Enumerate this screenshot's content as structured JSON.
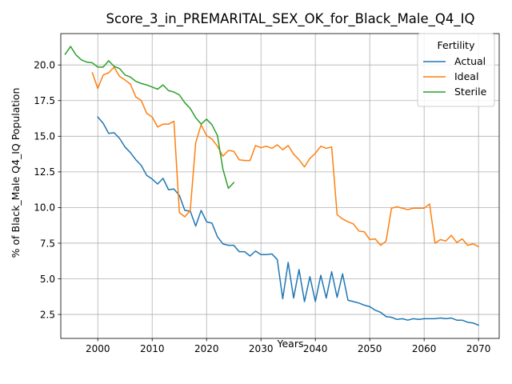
{
  "chart_data": {
    "type": "line",
    "title": "Score_3_in_PREMARITAL_SEX_OK_for_Black_Male_Q4_IQ",
    "xlabel": "Years",
    "ylabel": "% of Black_Male Q4_IQ Population",
    "xlim": [
      1993.2,
      2073.8
    ],
    "ylim": [
      0.82,
      22.2
    ],
    "x_ticks": [
      2000,
      2010,
      2020,
      2030,
      2040,
      2050,
      2060,
      2070
    ],
    "y_ticks": [
      2.5,
      5.0,
      7.5,
      10.0,
      12.5,
      15.0,
      17.5,
      20.0
    ],
    "x_tick_labels": [
      "2000",
      "2010",
      "2020",
      "2030",
      "2040",
      "2050",
      "2060",
      "2070"
    ],
    "y_tick_labels": [
      "2.5",
      "5.0",
      "7.5",
      "10.0",
      "12.5",
      "15.0",
      "17.5",
      "20.0"
    ],
    "grid": true,
    "legend": {
      "title": "Fertility",
      "position": "top-right"
    },
    "series": [
      {
        "name": "Actual",
        "color": "#1f77b4",
        "x_start": 2000,
        "values": [
          16.35,
          15.9,
          15.2,
          15.25,
          14.85,
          14.25,
          13.85,
          13.35,
          12.95,
          12.25,
          12.0,
          11.65,
          12.05,
          11.25,
          11.3,
          10.85,
          9.8,
          9.75,
          8.7,
          9.8,
          9.0,
          8.9,
          7.95,
          7.45,
          7.35,
          7.35,
          6.9,
          6.9,
          6.6,
          6.95,
          6.7,
          6.7,
          6.75,
          6.35,
          3.6,
          6.15,
          3.65,
          5.65,
          3.4,
          5.15,
          3.4,
          5.25,
          3.65,
          5.5,
          3.7,
          5.35,
          3.5,
          3.4,
          3.3,
          3.15,
          3.05,
          2.8,
          2.65,
          2.35,
          2.3,
          2.15,
          2.2,
          2.1,
          2.2,
          2.15,
          2.2,
          2.2,
          2.2,
          2.25,
          2.2,
          2.25,
          2.1,
          2.1,
          1.95,
          1.9,
          1.75
        ]
      },
      {
        "name": "Ideal",
        "color": "#ff7f0e",
        "x_start": 1999,
        "values": [
          19.45,
          18.35,
          19.3,
          19.45,
          19.85,
          19.2,
          18.95,
          18.65,
          17.75,
          17.5,
          16.6,
          16.35,
          15.65,
          15.85,
          15.85,
          16.05,
          9.65,
          9.35,
          9.8,
          14.55,
          15.8,
          15.05,
          14.8,
          14.3,
          13.6,
          14.0,
          13.95,
          13.35,
          13.3,
          13.3,
          14.35,
          14.2,
          14.3,
          14.15,
          14.4,
          14.05,
          14.35,
          13.75,
          13.35,
          12.85,
          13.45,
          13.8,
          14.3,
          14.15,
          14.25,
          9.5,
          9.2,
          9.0,
          8.85,
          8.35,
          8.3,
          7.75,
          7.8,
          7.35,
          7.65,
          9.95,
          10.05,
          9.95,
          9.85,
          9.95,
          9.95,
          9.95,
          10.25,
          7.5,
          7.75,
          7.65,
          8.05,
          7.55,
          7.8,
          7.35,
          7.45,
          7.25
        ]
      },
      {
        "name": "Sterile",
        "color": "#2ca02c",
        "x_start": 1994,
        "values": [
          20.75,
          21.3,
          20.7,
          20.35,
          20.2,
          20.15,
          19.85,
          19.85,
          20.3,
          19.9,
          19.75,
          19.3,
          19.15,
          18.85,
          18.7,
          18.6,
          18.45,
          18.3,
          18.6,
          18.2,
          18.1,
          17.9,
          17.35,
          16.95,
          16.3,
          15.85,
          16.2,
          15.8,
          15.05,
          12.7,
          11.35,
          11.75
        ]
      }
    ]
  }
}
